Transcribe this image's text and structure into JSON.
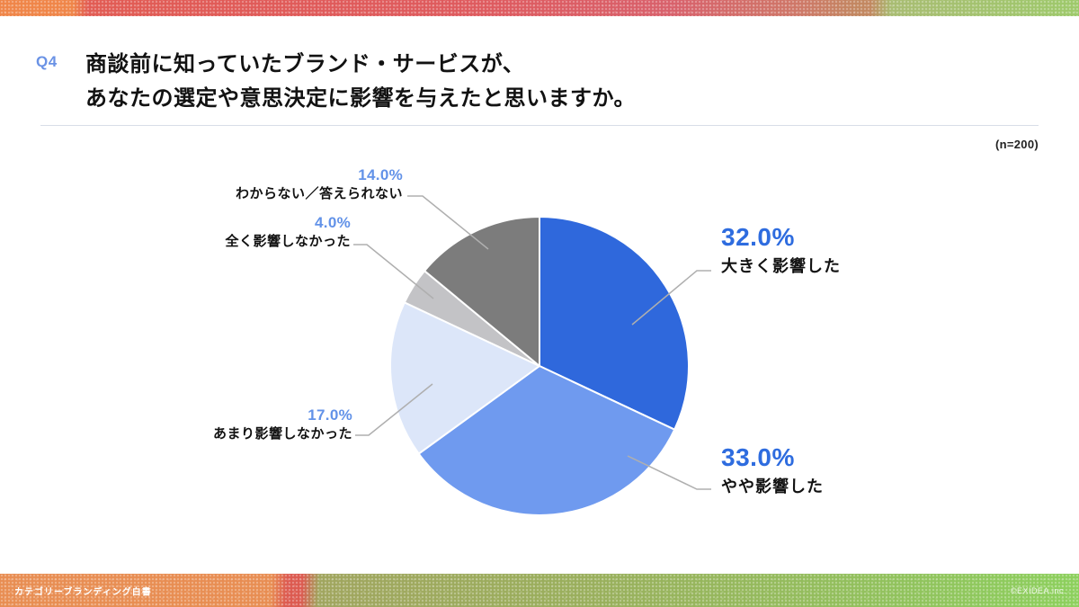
{
  "slide": {
    "question_number": "Q4",
    "title_line1": "商談前に知っていたブランド・サービスが、",
    "title_line2": "あなたの選定や意思決定に影響を与えたと思いますか。",
    "sample_size_label": "(n=200)"
  },
  "footer": {
    "left_text": "カテゴリーブランディング白書",
    "right_text": "©EXIDEA.inc."
  },
  "colors": {
    "question_label": "#6A92E5",
    "accent_strong": "#2E6CDF",
    "accent_soft": "#6292E8",
    "leader_line": "#AFAFAF"
  },
  "chart_data": {
    "type": "pie",
    "unit": "%",
    "sample_size": 200,
    "start_angle_deg": 0,
    "direction": "clockwise",
    "categories": [
      "大きく影響した",
      "やや影響した",
      "あまり影響しなかった",
      "全く影響しなかった",
      "わからない／答えられない"
    ],
    "values": [
      32.0,
      33.0,
      17.0,
      4.0,
      14.0
    ],
    "labels_pct": [
      "32.0%",
      "33.0%",
      "17.0%",
      "4.0%",
      "14.0%"
    ],
    "slice_colors": [
      "#2F68DC",
      "#6F9AEF",
      "#DCE6F9",
      "#C3C3C6",
      "#7C7C7C"
    ],
    "legend_position": "callouts",
    "grid": false
  }
}
